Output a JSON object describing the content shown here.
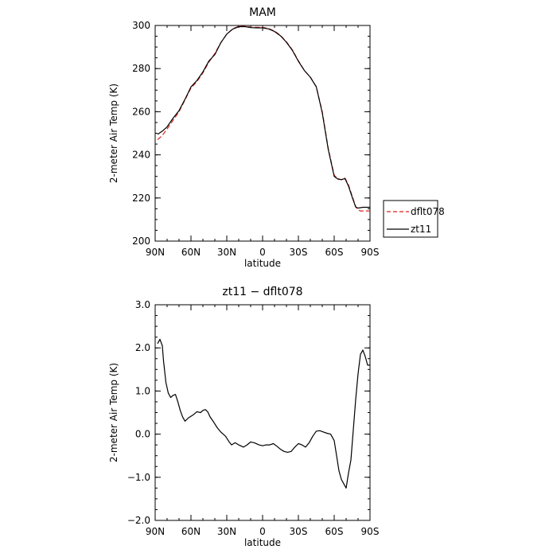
{
  "chart_data": [
    {
      "type": "line",
      "title": "MAM",
      "xlabel": "latitude",
      "ylabel": "2-meter Air Temp (K)",
      "xlim": [
        90,
        -90
      ],
      "ylim": [
        200,
        300
      ],
      "xticks": [
        90,
        60,
        30,
        0,
        -30,
        -60,
        -90
      ],
      "xticklabels": [
        "90N",
        "60N",
        "30N",
        "0",
        "30S",
        "60S",
        "90S"
      ],
      "yticks": [
        200,
        220,
        240,
        260,
        280,
        300
      ],
      "yticklabels": [
        "200",
        "220",
        "240",
        "260",
        "280",
        "300"
      ],
      "grid": false,
      "legend_placement": "right",
      "series": [
        {
          "name": "dflt078",
          "color": "#d9221c",
          "dash": "dashed",
          "x": [
            88,
            84,
            80,
            75,
            70,
            65,
            60,
            55,
            50,
            45,
            40,
            35,
            30,
            25,
            20,
            15,
            10,
            5,
            0,
            -5,
            -10,
            -15,
            -20,
            -25,
            -30,
            -35,
            -40,
            -45,
            -50,
            -55,
            -60,
            -63,
            -66,
            -69,
            -72,
            -75,
            -78,
            -80,
            -82,
            -84,
            -86,
            -88,
            -90
          ],
          "y": [
            247,
            249,
            252,
            256,
            260,
            265.5,
            271,
            274,
            278,
            283,
            287,
            292,
            296,
            298.5,
            299.6,
            299.7,
            299.2,
            299.1,
            299.1,
            298.6,
            297.4,
            295.4,
            292.4,
            288.6,
            283.6,
            279.2,
            276,
            271.6,
            260,
            243,
            230.5,
            229,
            228.5,
            229.3,
            226,
            221,
            216,
            214.5,
            214,
            214,
            214,
            214,
            214
          ]
        },
        {
          "name": "zt11",
          "color": "#000000",
          "dash": "solid",
          "x": [
            88,
            84,
            80,
            75,
            70,
            65,
            60,
            55,
            50,
            45,
            40,
            35,
            30,
            25,
            20,
            15,
            10,
            5,
            0,
            -5,
            -10,
            -15,
            -20,
            -25,
            -30,
            -35,
            -40,
            -45,
            -50,
            -55,
            -60,
            -63,
            -66,
            -69,
            -72,
            -75,
            -78,
            -80,
            -82,
            -84,
            -86,
            -88,
            -90
          ],
          "y": [
            249.5,
            251,
            253,
            257,
            260.5,
            265.8,
            271.5,
            274.5,
            278.5,
            283.5,
            286.5,
            292,
            296,
            298.3,
            299.4,
            299.5,
            299,
            298.9,
            298.9,
            298.4,
            297.2,
            295.2,
            292.2,
            288.4,
            283.4,
            279.1,
            276,
            271.5,
            259.5,
            242.5,
            230,
            228.8,
            228.5,
            229,
            225.5,
            220.5,
            215.8,
            215.3,
            215.5,
            215.7,
            215.7,
            215.7,
            215.7
          ]
        }
      ]
    },
    {
      "type": "line",
      "title": "zt11 − dflt078",
      "xlabel": "latitude",
      "ylabel": "2-meter Air Temp (K)",
      "xlim": [
        90,
        -90
      ],
      "ylim": [
        -2.0,
        3.0
      ],
      "xticks": [
        90,
        60,
        30,
        0,
        -30,
        -60,
        -90
      ],
      "xticklabels": [
        "90N",
        "60N",
        "30N",
        "0",
        "30S",
        "60S",
        "90S"
      ],
      "yticks": [
        -2.0,
        -1.0,
        0.0,
        1.0,
        2.0,
        3.0
      ],
      "yticklabels": [
        "−2.0",
        "−1.0",
        "0.0",
        "1.0",
        "2.0",
        "3.0"
      ],
      "grid": false,
      "series": [
        {
          "color": "#000000",
          "dash": "solid",
          "x": [
            88,
            86,
            84,
            83,
            81,
            79,
            77,
            75,
            73,
            71,
            69,
            67,
            65,
            62,
            58,
            55,
            52,
            50,
            48,
            46,
            44,
            41,
            38,
            35,
            33,
            31,
            28,
            26,
            23,
            20,
            16,
            13,
            10,
            7,
            3,
            0,
            -3,
            -6,
            -9,
            -12,
            -15,
            -18,
            -21,
            -24,
            -27,
            -30,
            -33,
            -36,
            -39,
            -42,
            -45,
            -48,
            -51,
            -54,
            -57,
            -60,
            -62,
            -64,
            -66,
            -68,
            -70,
            -72,
            -74,
            -76,
            -78,
            -80,
            -82,
            -84,
            -86,
            -88,
            -90
          ],
          "y": [
            2.1,
            2.2,
            2.05,
            1.7,
            1.2,
            0.95,
            0.85,
            0.9,
            0.92,
            0.75,
            0.55,
            0.4,
            0.3,
            0.38,
            0.45,
            0.52,
            0.5,
            0.55,
            0.57,
            0.52,
            0.4,
            0.28,
            0.15,
            0.05,
            0.0,
            -0.05,
            -0.18,
            -0.25,
            -0.2,
            -0.25,
            -0.3,
            -0.25,
            -0.18,
            -0.2,
            -0.25,
            -0.27,
            -0.25,
            -0.25,
            -0.22,
            -0.28,
            -0.35,
            -0.4,
            -0.42,
            -0.4,
            -0.3,
            -0.22,
            -0.25,
            -0.3,
            -0.2,
            -0.05,
            0.07,
            0.08,
            0.05,
            0.02,
            0.0,
            -0.15,
            -0.5,
            -0.85,
            -1.05,
            -1.15,
            -1.25,
            -0.9,
            -0.6,
            0.1,
            0.8,
            1.4,
            1.85,
            1.95,
            1.8,
            1.6,
            1.6
          ]
        }
      ]
    }
  ]
}
